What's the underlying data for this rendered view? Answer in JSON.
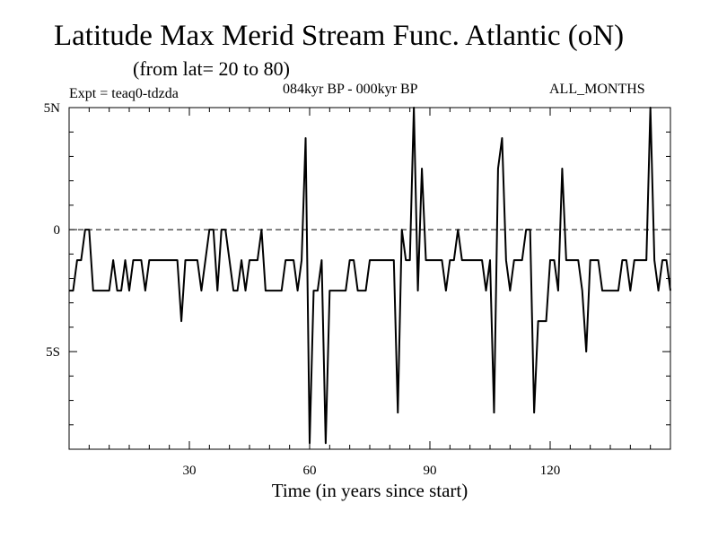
{
  "header": {
    "title": "Latitude Max Merid Stream Func. Atlantic (oN)",
    "subtitle": "(from lat= 20 to 80)",
    "expt": "Expt = teaq0-tdzda",
    "period": "084kyr BP - 000kyr BP",
    "months": "ALL_MONTHS"
  },
  "chart_data": {
    "type": "line",
    "title": "Latitude Max Merid Stream Func. Atlantic (oN)",
    "xlabel": "Time (in years since start)",
    "ylabel": "",
    "xlim": [
      0,
      150
    ],
    "ylim": [
      -9,
      5
    ],
    "x_ticks": [
      30,
      60,
      90,
      120
    ],
    "x_tick_labels": [
      "30",
      "60",
      "90",
      "120"
    ],
    "y_ticks": [
      5,
      0,
      -5
    ],
    "y_tick_labels": [
      "5N",
      "0",
      "5S"
    ],
    "zero_line": "dashed",
    "series_color": "#000000",
    "series": [
      {
        "x": [
          0,
          1,
          2,
          3,
          4,
          5,
          6,
          7,
          8,
          9,
          10,
          11,
          12,
          13,
          14,
          15,
          16,
          17,
          18,
          19,
          20,
          21,
          22,
          23,
          24,
          25,
          26,
          27,
          28,
          29,
          30,
          31,
          32,
          33,
          34,
          35,
          36,
          37,
          38,
          39,
          40,
          41,
          42,
          43,
          44,
          45,
          46,
          47,
          48,
          49,
          50,
          51,
          52,
          53,
          54,
          55,
          56,
          57,
          58,
          59,
          60,
          61,
          62,
          63,
          64,
          65,
          66,
          67,
          68,
          69,
          70,
          71,
          72,
          73,
          74,
          75,
          76,
          77,
          78,
          79,
          80,
          81,
          82,
          83,
          84,
          85,
          86,
          87,
          88,
          89,
          90,
          91,
          92,
          93,
          94,
          95,
          96,
          97,
          98,
          99,
          100,
          101,
          102,
          103,
          104,
          105,
          106,
          107,
          108,
          109,
          110,
          111,
          112,
          113,
          114,
          115,
          116,
          117,
          118,
          119,
          120,
          121,
          122,
          123,
          124,
          125,
          126,
          127,
          128,
          129,
          130,
          131,
          132,
          133,
          134,
          135,
          136,
          137,
          138,
          139,
          140,
          141,
          142,
          143,
          144,
          145,
          146,
          147,
          148,
          149,
          150
        ],
        "values": [
          -2.5,
          -2.5,
          -1.25,
          -1.25,
          0,
          0,
          -2.5,
          -2.5,
          -2.5,
          -2.5,
          -2.5,
          -1.25,
          -2.5,
          -2.5,
          -1.25,
          -2.5,
          -1.25,
          -1.25,
          -1.25,
          -2.5,
          -1.25,
          -1.25,
          -1.25,
          -1.25,
          -1.25,
          -1.25,
          -1.25,
          -1.25,
          -3.75,
          -1.25,
          -1.25,
          -1.25,
          -1.25,
          -2.5,
          -1.25,
          0,
          0,
          -2.5,
          0,
          0,
          -1.25,
          -2.5,
          -2.5,
          -1.25,
          -2.5,
          -1.25,
          -1.25,
          -1.25,
          0,
          -2.5,
          -2.5,
          -2.5,
          -2.5,
          -2.5,
          -1.25,
          -1.25,
          -1.25,
          -2.5,
          -1.25,
          3.75,
          -8.75,
          -2.5,
          -2.5,
          -1.25,
          -8.75,
          -2.5,
          -2.5,
          -2.5,
          -2.5,
          -2.5,
          -1.25,
          -1.25,
          -2.5,
          -2.5,
          -2.5,
          -1.25,
          -1.25,
          -1.25,
          -1.25,
          -1.25,
          -1.25,
          -1.25,
          -7.5,
          0,
          -1.25,
          -1.25,
          5,
          -2.5,
          2.5,
          -1.25,
          -1.25,
          -1.25,
          -1.25,
          -1.25,
          -2.5,
          -1.25,
          -1.25,
          0,
          -1.25,
          -1.25,
          -1.25,
          -1.25,
          -1.25,
          -1.25,
          -2.5,
          -1.25,
          -7.5,
          2.5,
          3.75,
          -1.25,
          -2.5,
          -1.25,
          -1.25,
          -1.25,
          0,
          0,
          -7.5,
          -3.75,
          -3.75,
          -3.75,
          -1.25,
          -1.25,
          -2.5,
          2.5,
          -1.25,
          -1.25,
          -1.25,
          -1.25,
          -2.5,
          -5,
          -1.25,
          -1.25,
          -1.25,
          -2.5,
          -2.5,
          -2.5,
          -2.5,
          -2.5,
          -1.25,
          -1.25,
          -2.5,
          -1.25,
          -1.25,
          -1.25,
          -1.25,
          5,
          -1.25,
          -2.5,
          -1.25,
          -1.25,
          -2.5
        ]
      }
    ]
  }
}
